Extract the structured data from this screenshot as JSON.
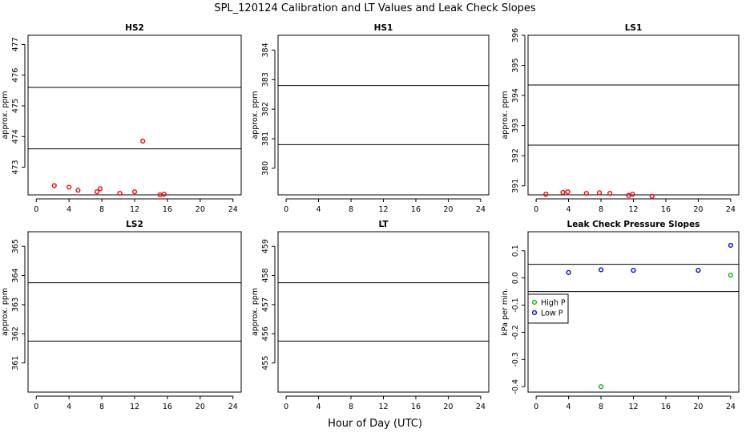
{
  "figure": {
    "title": "SPL_120124  Calibration and LT Values and Leak Check Slopes",
    "xlabel": "Hour of Day (UTC)"
  },
  "chart_data": [
    {
      "type": "scatter",
      "title": "HS2",
      "ylabel": "approx. ppm",
      "xlim": [
        -1,
        25
      ],
      "ylim": [
        472.1,
        477.3
      ],
      "xticks": [
        0,
        4,
        8,
        12,
        16,
        20,
        24
      ],
      "yticks": [
        472,
        473,
        474,
        475,
        476,
        477
      ],
      "hlines": [
        475.6,
        473.6
      ],
      "series": [
        {
          "color": "#ff0000",
          "marker": "circle",
          "x": [
            2.2,
            4.0,
            5.1,
            7.4,
            7.8,
            10.2,
            12.0,
            13.0,
            15.1,
            15.6
          ],
          "y": [
            472.4,
            472.35,
            472.25,
            472.2,
            472.3,
            472.15,
            472.2,
            473.85,
            472.1,
            472.12
          ]
        }
      ]
    },
    {
      "type": "scatter",
      "title": "HS1",
      "ylabel": "approx. ppm",
      "xlim": [
        -1,
        25
      ],
      "ylim": [
        379.1,
        384.5
      ],
      "xticks": [
        0,
        4,
        8,
        12,
        16,
        20,
        24
      ],
      "yticks": [
        380,
        381,
        382,
        383,
        384
      ],
      "hlines": [
        382.8,
        380.8
      ],
      "series": []
    },
    {
      "type": "scatter",
      "title": "LS1",
      "ylabel": "approx. ppm",
      "xlim": [
        -1,
        25
      ],
      "ylim": [
        390.7,
        396.0
      ],
      "xticks": [
        0,
        4,
        8,
        12,
        16,
        20,
        24
      ],
      "yticks": [
        391,
        392,
        393,
        394,
        395,
        396
      ],
      "hlines": [
        394.35,
        392.35
      ],
      "series": [
        {
          "color": "#ff0000",
          "marker": "circle",
          "x": [
            1.2,
            3.3,
            3.9,
            6.2,
            7.8,
            9.1,
            11.4,
            11.9,
            14.3
          ],
          "y": [
            390.72,
            390.78,
            390.8,
            390.75,
            390.77,
            390.75,
            390.68,
            390.72,
            390.65
          ]
        }
      ]
    },
    {
      "type": "scatter",
      "title": "LS2",
      "ylabel": "approx. ppm",
      "xlim": [
        -1,
        25
      ],
      "ylim": [
        360.0,
        365.5
      ],
      "xticks": [
        0,
        4,
        8,
        12,
        16,
        20,
        24
      ],
      "yticks": [
        361,
        362,
        363,
        364,
        365
      ],
      "hlines": [
        363.75,
        361.75
      ],
      "series": []
    },
    {
      "type": "scatter",
      "title": "LT",
      "ylabel": "approx. ppm",
      "xlim": [
        -1,
        25
      ],
      "ylim": [
        454.0,
        459.5
      ],
      "xticks": [
        0,
        4,
        8,
        12,
        16,
        20,
        24
      ],
      "yticks": [
        455,
        456,
        457,
        458,
        459
      ],
      "hlines": [
        457.75,
        455.75
      ],
      "series": []
    },
    {
      "type": "scatter",
      "title": "Leak Check Pressure Slopes",
      "ylabel": "kPa per min.",
      "xlim": [
        -1,
        25
      ],
      "ylim": [
        -0.42,
        0.17
      ],
      "xticks": [
        0,
        4,
        8,
        12,
        16,
        20,
        24
      ],
      "yticks": [
        -0.4,
        -0.3,
        -0.2,
        -0.1,
        0.0,
        0.1
      ],
      "ytick_labels": [
        "-0.4",
        "-0.3",
        "-0.2",
        "-0.1",
        "0.0",
        "0.1"
      ],
      "hlines": [
        0.05,
        -0.05
      ],
      "legend": "left",
      "series": [
        {
          "name": "High P",
          "color": "#00bb00",
          "marker": "circle",
          "x": [
            8,
            24
          ],
          "y": [
            -0.4,
            0.01
          ]
        },
        {
          "name": "Low P",
          "color": "#0000ff",
          "marker": "circle",
          "x": [
            4,
            8,
            12,
            20,
            24
          ],
          "y": [
            0.02,
            0.03,
            0.028,
            0.028,
            0.12
          ]
        }
      ]
    }
  ]
}
